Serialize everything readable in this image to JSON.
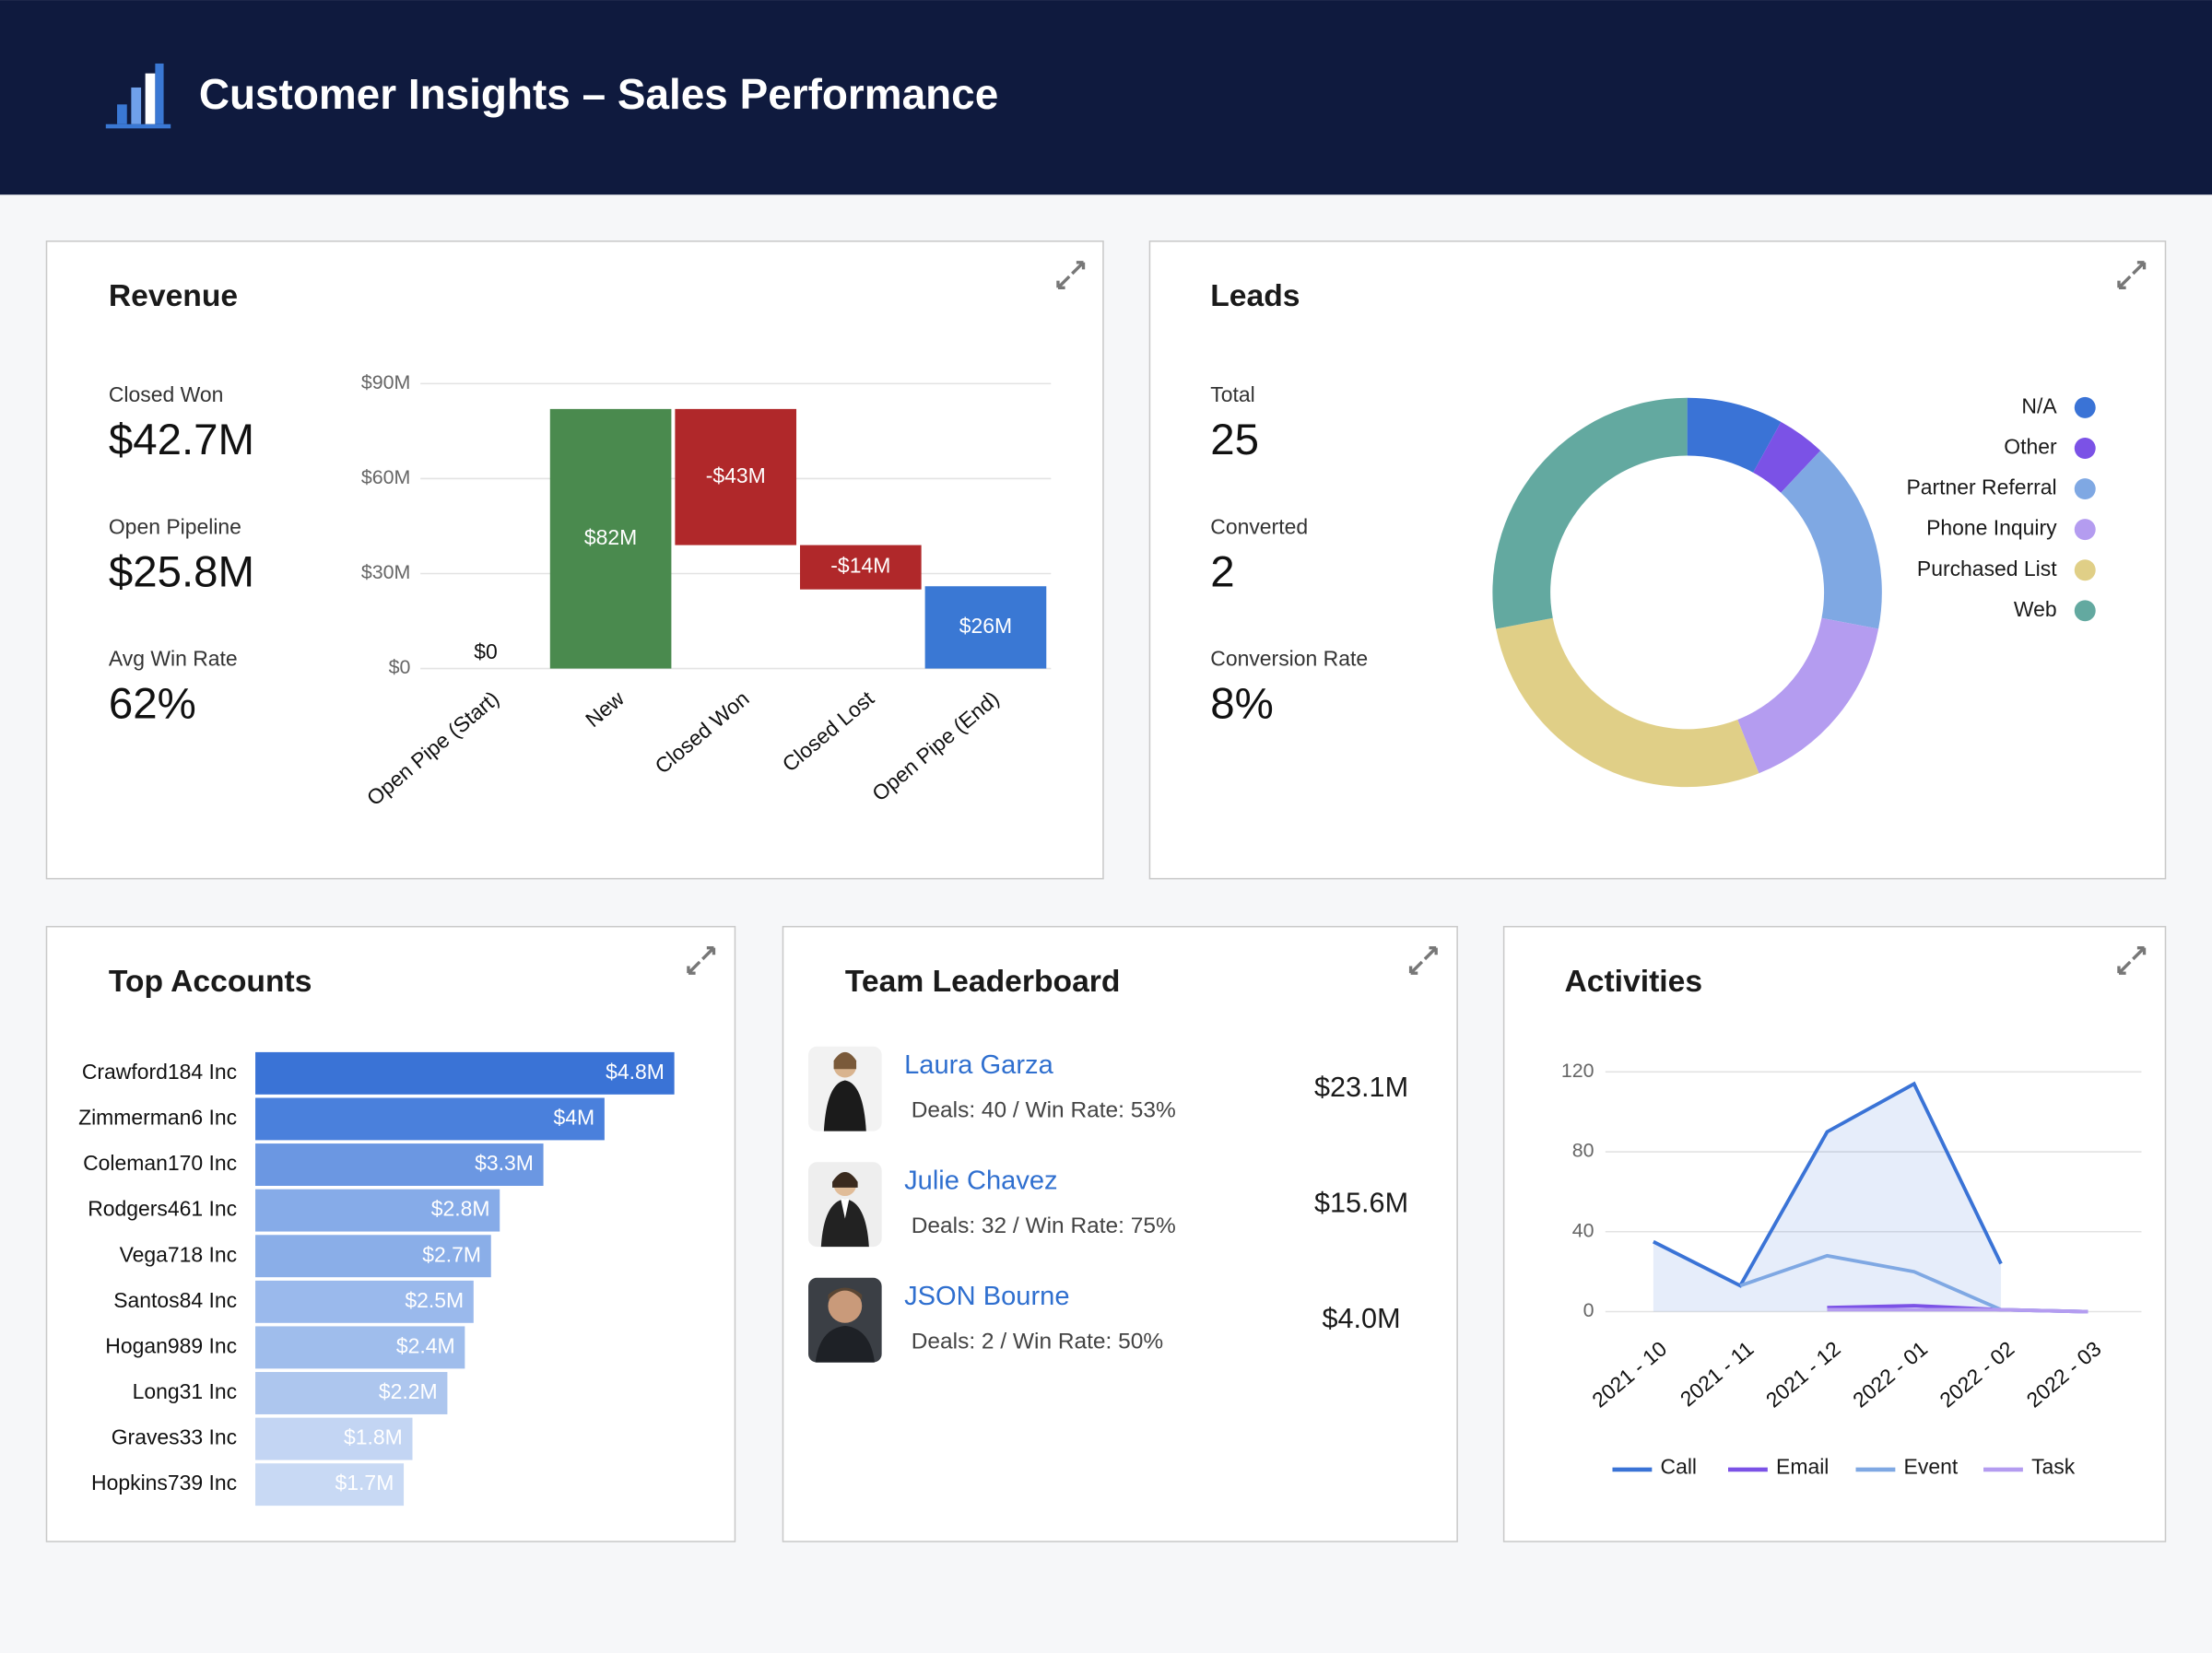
{
  "header": {
    "title": "Customer Insights – Sales Performance"
  },
  "revenue": {
    "kpis": [
      {
        "label": "Closed Won",
        "value": "$42.7M"
      },
      {
        "label": "Open Pipeline",
        "value": "$25.8M"
      },
      {
        "label": "Avg Win Rate",
        "value": "62%"
      }
    ]
  },
  "leads": {
    "kpis": [
      {
        "label": "Total",
        "value": 25
      },
      {
        "label": "Converted",
        "value": 2
      },
      {
        "label": "Conversion Rate",
        "value": "8%"
      }
    ]
  },
  "leaderboard": {
    "title": "Team Leaderboard",
    "rows": [
      {
        "name": "Laura Garza",
        "detail": "Deals: 40 / Win Rate: 53%",
        "amount": "$23.1M"
      },
      {
        "name": "Julie Chavez",
        "detail": "Deals: 32 / Win Rate: 75%",
        "amount": "$15.6M"
      },
      {
        "name": "JSON Bourne",
        "detail": "Deals: 2 / Win Rate: 50%",
        "amount": "$4.0M"
      }
    ]
  },
  "chart_data": [
    {
      "type": "waterfall",
      "title": "Revenue",
      "categories": [
        "Open Pipe (Start)",
        "New",
        "Closed Won",
        "Closed Lost",
        "Open Pipe (End)"
      ],
      "values": [
        0,
        82,
        -43,
        -14,
        26
      ],
      "value_labels": [
        "$0",
        "$82M",
        "-$43M",
        "-$14M",
        "$26M"
      ],
      "ylim": [
        0,
        90
      ],
      "yticks": [
        {
          "value": 0,
          "label": "$0"
        },
        {
          "value": 30,
          "label": "$30M"
        },
        {
          "value": 60,
          "label": "$60M"
        },
        {
          "value": 90,
          "label": "$90M"
        }
      ],
      "grid": true,
      "colors": {
        "increase": "#4a8a4e",
        "decrease": "#b0282a",
        "total": "#3a78d4"
      }
    },
    {
      "type": "donut",
      "title": "Leads",
      "categories": [
        "N/A",
        "Other",
        "Partner Referral",
        "Phone Inquiry",
        "Purchased List",
        "Web"
      ],
      "values": [
        2,
        1,
        4,
        4,
        7,
        7
      ],
      "colors": [
        "#3a73d6",
        "#7b52e6",
        "#7fa8e3",
        "#b49cf0",
        "#e0cf87",
        "#63a9a0"
      ],
      "legend": "right"
    },
    {
      "type": "hbar",
      "title": "Top Accounts",
      "categories": [
        "Crawford184 Inc",
        "Zimmerman6 Inc",
        "Coleman170 Inc",
        "Rodgers461 Inc",
        "Vega718 Inc",
        "Santos84 Inc",
        "Hogan989 Inc",
        "Long31 Inc",
        "Graves33 Inc",
        "Hopkins739 Inc"
      ],
      "values": [
        4.8,
        4,
        3.3,
        2.8,
        2.7,
        2.5,
        2.4,
        2.2,
        1.8,
        1.7
      ],
      "value_labels": [
        "$4.8M",
        "$4M",
        "$3.3M",
        "$2.8M",
        "$2.7M",
        "$2.5M",
        "$2.4M",
        "$2.2M",
        "$1.8M",
        "$1.7M"
      ],
      "colors": [
        "#3a73d6",
        "#4a80dc",
        "#6b97e2",
        "#86abe8",
        "#8aaee8",
        "#9ab9ec",
        "#9fbdec",
        "#adc6ee",
        "#c3d5f3",
        "#c8d9f4"
      ]
    },
    {
      "type": "line",
      "title": "Activities",
      "x": [
        "2021 - 10",
        "2021 - 11",
        "2021 - 12",
        "2022 - 01",
        "2022 - 02",
        "2022 - 03"
      ],
      "series": [
        {
          "name": "Call",
          "color": "#3a73d6",
          "values": [
            35,
            13,
            90,
            114,
            24,
            null
          ],
          "fill": true
        },
        {
          "name": "Email",
          "color": "#7b52e6",
          "values": [
            null,
            null,
            2,
            3,
            1,
            0
          ]
        },
        {
          "name": "Event",
          "color": "#7fa8e3",
          "values": [
            null,
            13,
            28,
            20,
            1,
            0
          ]
        },
        {
          "name": "Task",
          "color": "#b49cf0",
          "values": [
            null,
            null,
            1,
            1,
            1,
            0
          ]
        }
      ],
      "ylim": [
        0,
        120
      ],
      "yticks": [
        0,
        40,
        80,
        120
      ],
      "grid": true,
      "legend": "bottom"
    }
  ]
}
